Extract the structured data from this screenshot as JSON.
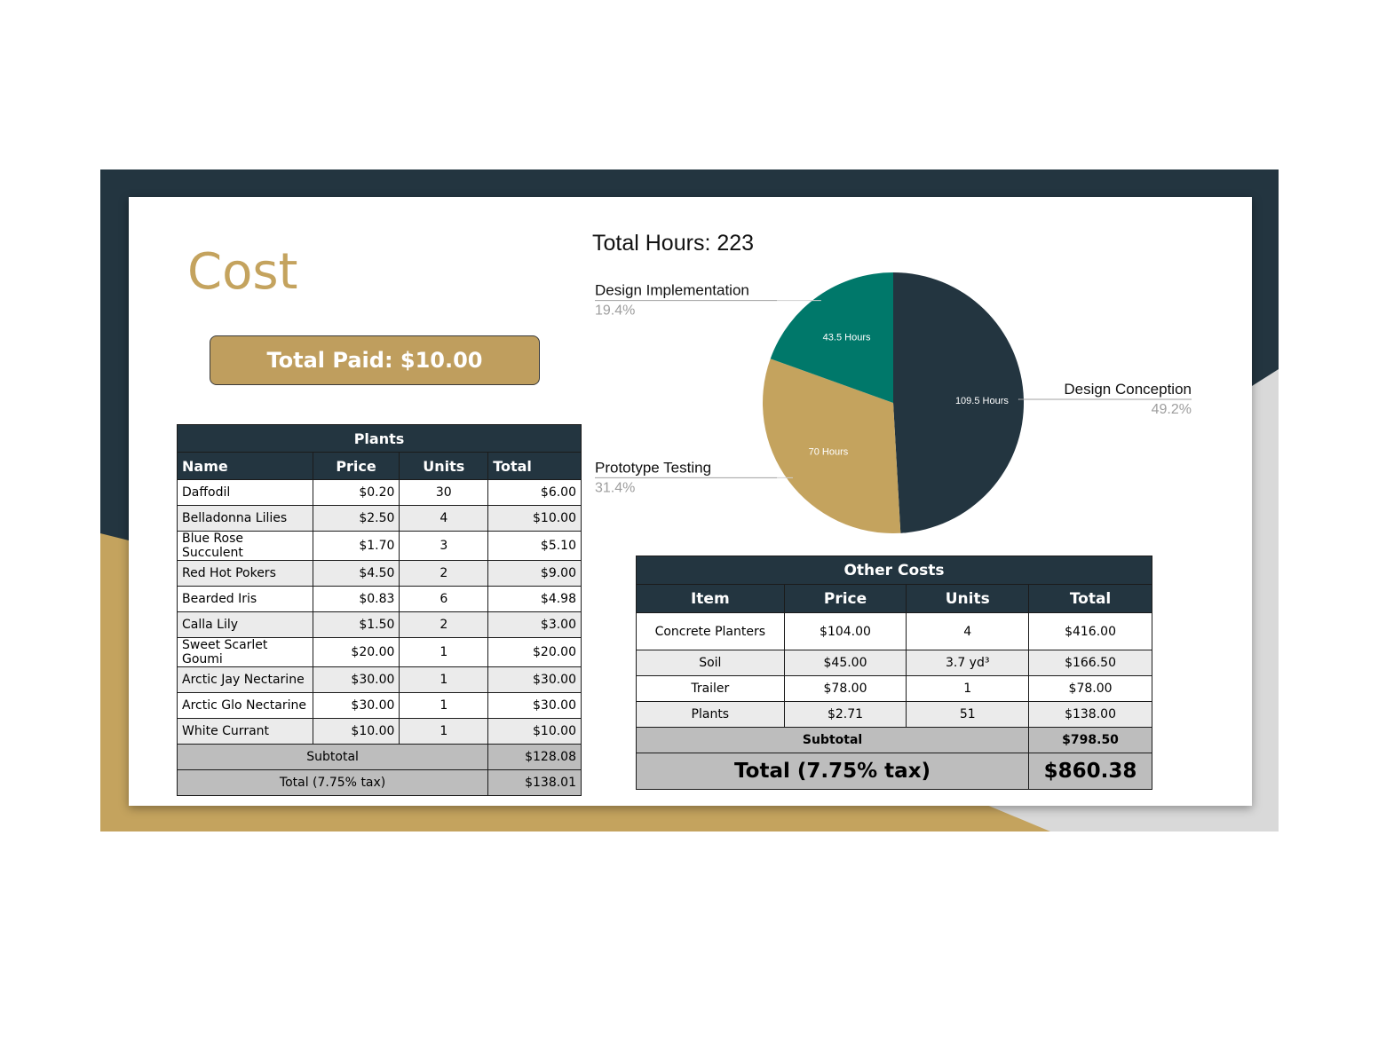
{
  "slide": {
    "title": "Cost",
    "total_paid": "Total Paid: $10.00",
    "colors": {
      "navy": "#233540",
      "gold": "#c4a35e",
      "teal": "#00786a",
      "gray": "#d9d9d9"
    }
  },
  "chart_data": {
    "type": "pie",
    "title": "Total Hours: 223",
    "slices": [
      {
        "label": "Design Conception",
        "value": 109.5,
        "value_label": "109.5 Hours",
        "percent": "49.2%",
        "color": "#233540"
      },
      {
        "label": "Prototype Testing",
        "value": 70,
        "value_label": "70 Hours",
        "percent": "31.4%",
        "color": "#c4a35e"
      },
      {
        "label": "Design Implementation",
        "value": 43.5,
        "value_label": "43.5 Hours",
        "percent": "19.4%",
        "color": "#00786a"
      }
    ]
  },
  "plants_table": {
    "title": "Plants",
    "headers": [
      "Name",
      "Price",
      "Units",
      "Total"
    ],
    "rows": [
      [
        "Daffodil",
        "$0.20",
        "30",
        "$6.00"
      ],
      [
        "Belladonna Lilies",
        "$2.50",
        "4",
        "$10.00"
      ],
      [
        "Blue Rose Succulent",
        "$1.70",
        "3",
        "$5.10"
      ],
      [
        "Red Hot Pokers",
        "$4.50",
        "2",
        "$9.00"
      ],
      [
        "Bearded Iris",
        "$0.83",
        "6",
        "$4.98"
      ],
      [
        "Calla Lily",
        "$1.50",
        "2",
        "$3.00"
      ],
      [
        "Sweet Scarlet Goumi",
        "$20.00",
        "1",
        "$20.00"
      ],
      [
        "Arctic Jay Nectarine",
        "$30.00",
        "1",
        "$30.00"
      ],
      [
        "Arctic Glo Nectarine",
        "$30.00",
        "1",
        "$30.00"
      ],
      [
        "White Currant",
        "$10.00",
        "1",
        "$10.00"
      ]
    ],
    "subtotal_label": "Subtotal",
    "subtotal_value": "$128.08",
    "total_label": "Total (7.75% tax)",
    "total_value": "$138.01"
  },
  "other_costs_table": {
    "title": "Other Costs",
    "headers": [
      "Item",
      "Price",
      "Units",
      "Total"
    ],
    "rows": [
      [
        "Concrete Planters",
        "$104.00",
        "4",
        "$416.00"
      ],
      [
        "Soil",
        "$45.00",
        "3.7 yd³",
        "$166.50"
      ],
      [
        "Trailer",
        "$78.00",
        "1",
        "$78.00"
      ],
      [
        "Plants",
        "$2.71",
        "51",
        "$138.00"
      ]
    ],
    "subtotal_label": "Subtotal",
    "subtotal_value": "$798.50",
    "total_label": "Total (7.75% tax)",
    "total_value": "$860.38"
  }
}
